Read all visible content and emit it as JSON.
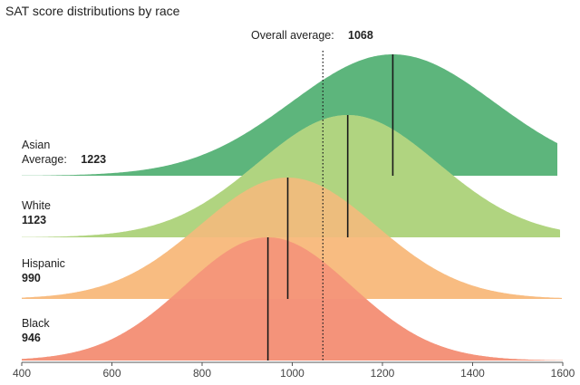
{
  "chart_data": {
    "type": "area",
    "title": "SAT score distributions by race",
    "xlim": [
      400,
      1600
    ],
    "x_ticks": [
      400,
      600,
      800,
      1000,
      1200,
      1400,
      1600
    ],
    "overall_average": {
      "label": "Overall average:",
      "value": 1068
    },
    "average_prefix": "Average:",
    "series": [
      {
        "name": "Asian",
        "average": 1223,
        "sd": 225,
        "color": "#5db57c"
      },
      {
        "name": "White",
        "average": 1123,
        "sd": 200,
        "color": "#a9d07a"
      },
      {
        "name": "Hispanic",
        "average": 990,
        "sd": 195,
        "color": "#f7ba7d"
      },
      {
        "name": "Black",
        "average": 946,
        "sd": 185,
        "color": "#f08a67"
      }
    ],
    "fills": {
      "Asian": "#5db57c",
      "White": "#a9d07a",
      "White_back": "#d4e6a2",
      "Hispanic": "#f7ba7d",
      "Hispanic_back": "#fbcb98",
      "Black": "#f4937a"
    }
  }
}
